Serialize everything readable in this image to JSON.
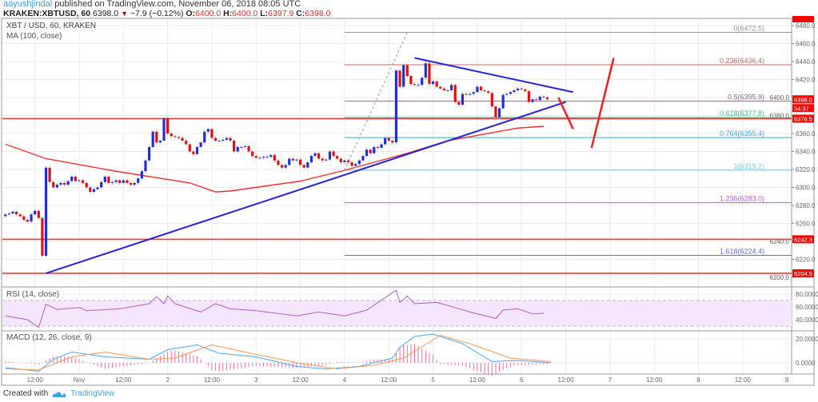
{
  "header": {
    "author": "aayushjindal",
    "published_text": "published on TradingView.com, November 06, 2018 08:05 UTC",
    "symbol": "KRAKEN:XBTUSD, 60",
    "last": "6398.0",
    "change": "−7.9 (−0.12%)",
    "change_direction": "down",
    "o_label": "O:",
    "o": "6400.0",
    "h_label": "H:",
    "h": "6400.0",
    "l_label": "L:",
    "l": "6397.9",
    "c_label": "C:",
    "c": "6398.0"
  },
  "legends": {
    "main": "XBT / USD, 60, KRAKEN",
    "ma": "MA (100, close)",
    "rsi": "RSI (14, close)",
    "macd": "MACD (12, 26, close, 9)"
  },
  "footer": {
    "created_with": "Created with",
    "brand": "TradingView"
  },
  "colors": {
    "up": "#1f2fd6",
    "down": "#e01010",
    "ma": "#f03030",
    "trendline": "#2424d8",
    "arrow": "#f02020",
    "support": "#f03a3a",
    "rsi": "#b45cc8",
    "rsi_band": "#f3e6fd",
    "macd": "#4aa8f0",
    "signal": "#f59a55",
    "hist": "#f06aa8",
    "grid": "#ececec"
  },
  "chart_data": [
    {
      "type": "candlestick",
      "title": "XBT / USD, 60, KRAKEN",
      "interval_minutes": 60,
      "start": "2018-10-31T04:00",
      "open_first": 6268,
      "close": [
        6270,
        6271,
        6273,
        6270,
        6268,
        6264,
        6262,
        6270,
        6274,
        6266,
        6224,
        6322,
        6306,
        6300,
        6303,
        6305,
        6303,
        6307,
        6312,
        6307,
        6308,
        6305,
        6300,
        6295,
        6298,
        6300,
        6306,
        6312,
        6305,
        6306,
        6308,
        6305,
        6308,
        6305,
        6303,
        6305,
        6310,
        6318,
        6330,
        6345,
        6362,
        6350,
        6352,
        6377,
        6360,
        6357,
        6356,
        6355,
        6352,
        6348,
        6340,
        6337,
        6345,
        6350,
        6362,
        6365,
        6355,
        6352,
        6352,
        6353,
        6355,
        6352,
        6340,
        6345,
        6345,
        6346,
        6340,
        6335,
        6333,
        6333,
        6334,
        6334,
        6336,
        6330,
        6325,
        6322,
        6325,
        6332,
        6330,
        6331,
        6325,
        6322,
        6328,
        6335,
        6338,
        6332,
        6330,
        6331,
        6340,
        6335,
        6332,
        6328,
        6330,
        6328,
        6324,
        6326,
        6330,
        6335,
        6342,
        6338,
        6345,
        6344,
        6348,
        6355,
        6352,
        6350,
        6430,
        6412,
        6436,
        6424,
        6415,
        6414,
        6414,
        6422,
        6438,
        6415,
        6418,
        6412,
        6410,
        6408,
        6408,
        6414,
        6395,
        6392,
        6404,
        6403,
        6404,
        6406,
        6412,
        6408,
        6407,
        6405,
        6390,
        6378,
        6388,
        6403,
        6404,
        6406,
        6408,
        6410,
        6409,
        6407,
        6395,
        6398,
        6397,
        6401,
        6400,
        6398
      ],
      "ma_100": [
        [
          "2018-10-31T04:00",
          6348
        ],
        [
          "2018-10-31T15:00",
          6332
        ],
        [
          "2018-11-01T10:00",
          6318
        ],
        [
          "2018-11-02T06:00",
          6305
        ],
        [
          "2018-11-02T13:00",
          6295
        ],
        [
          "2018-11-02T17:00",
          6296
        ],
        [
          "2018-11-03T12:00",
          6307
        ],
        [
          "2018-11-04T00:00",
          6319
        ],
        [
          "2018-11-04T17:00",
          6338
        ],
        [
          "2018-11-05T04:00",
          6352
        ],
        [
          "2018-11-05T23:00",
          6366
        ],
        [
          "2018-11-06T06:00",
          6368
        ]
      ],
      "price_axis": {
        "min": 6200,
        "max": 6480,
        "step": 20,
        "ticks": [
          "6480.0",
          "6460.0",
          "6440.0",
          "6420.0",
          "6400.0",
          "6380.0",
          "6360.0",
          "6340.0",
          "6320.0",
          "6300.0",
          "6280.0",
          "6260.0",
          "6240.0",
          "6220.0",
          "6200.0"
        ]
      },
      "time_axis": [
        [
          "2018-10-31T12:00",
          "12:00"
        ],
        [
          "2018-11-01T00:00",
          "Nov"
        ],
        [
          "2018-11-01T12:00",
          "12:00"
        ],
        [
          "2018-11-02T00:00",
          "2"
        ],
        [
          "2018-11-02T12:00",
          "12:00"
        ],
        [
          "2018-11-03T00:00",
          "3"
        ],
        [
          "2018-11-03T12:00",
          "12:00"
        ],
        [
          "2018-11-04T00:00",
          "4"
        ],
        [
          "2018-11-04T12:00",
          "12:00"
        ],
        [
          "2018-11-05T00:00",
          "5"
        ],
        [
          "2018-11-05T12:00",
          "12:00"
        ],
        [
          "2018-11-06T00:00",
          "6"
        ],
        [
          "2018-11-06T12:00",
          "12:00"
        ],
        [
          "2018-11-07T00:00",
          "7"
        ],
        [
          "2018-11-07T12:00",
          "12:00"
        ],
        [
          "2018-11-08T00:00",
          "8"
        ],
        [
          "2018-11-08T12:00",
          "12:00"
        ],
        [
          "2018-11-09T00:00",
          "9"
        ]
      ],
      "price_tags": [
        {
          "price": 6398.0,
          "label": "6398.0"
        },
        {
          "price": 6388.5,
          "label": "54:37"
        },
        {
          "price": 6376.5,
          "label": "6376.5"
        },
        {
          "price": 6242.3,
          "label": "6242.3"
        },
        {
          "price": 6204.5,
          "label": "6204.5"
        }
      ],
      "horizontal_lines": [
        6376.5,
        6242.3,
        6204.5
      ],
      "fibonacci": {
        "from": [
          "2018-11-04T00:00",
          6319.2
        ],
        "to": [
          "2018-11-04T17:00",
          6472.5
        ],
        "levels": [
          {
            "label": "0(6472.5)",
            "price": 6472.5,
            "color": "#9a9a9a"
          },
          {
            "label": "0.236(6436.4)",
            "price": 6436.4,
            "color": "#d06a6a"
          },
          {
            "label": "0.5(6395.9)",
            "price": 6395.9,
            "color": "#8c6a84"
          },
          {
            "label": "0.618(6377.8)",
            "price": 6377.8,
            "color": "#3cbf8a"
          },
          {
            "label": "0.764(6355.4)",
            "price": 6355.4,
            "color": "#3aa6e0"
          },
          {
            "label": "1(6319.2)",
            "price": 6319.2,
            "color": "#7cc4e6"
          },
          {
            "label": "1.236(6283.0)",
            "price": 6283.0,
            "color": "#b45ce0"
          },
          {
            "label": "1.618(6224.4)",
            "price": 6224.4,
            "color": "#6a6ae0"
          }
        ]
      },
      "trendlines": [
        {
          "from": [
            "2018-10-31T15:00",
            6204.5
          ],
          "to": [
            "2018-11-06T12:00",
            6395
          ]
        },
        {
          "from": [
            "2018-11-04T19:00",
            6444
          ],
          "to": [
            "2018-11-06T14:00",
            6406
          ]
        }
      ],
      "arrows": [
        {
          "from": [
            "2018-11-06T10:00",
            6400
          ],
          "to": [
            "2018-11-06T14:00",
            6365
          ]
        },
        {
          "from": [
            "2018-11-06T19:00",
            6344
          ],
          "to": [
            "2018-11-07T01:00",
            6444
          ]
        }
      ]
    },
    {
      "type": "line",
      "title": "RSI (14, close)",
      "ylim": [
        20,
        90
      ],
      "ticks": [
        "80.0000",
        "60.0000",
        "40.0000"
      ],
      "band": [
        30,
        70
      ],
      "values": [
        [
          "2018-10-31T04:00",
          46
        ],
        [
          "2018-10-31T10:00",
          40
        ],
        [
          "2018-10-31T13:00",
          28
        ],
        [
          "2018-10-31T15:00",
          64
        ],
        [
          "2018-10-31T18:00",
          56
        ],
        [
          "2018-11-01T00:00",
          59
        ],
        [
          "2018-11-01T02:00",
          54
        ],
        [
          "2018-11-01T11:00",
          57
        ],
        [
          "2018-11-01T19:00",
          65
        ],
        [
          "2018-11-01T21:00",
          76
        ],
        [
          "2018-11-01T23:00",
          65
        ],
        [
          "2018-11-02T00:00",
          77
        ],
        [
          "2018-11-02T02:00",
          65
        ],
        [
          "2018-11-02T09:00",
          52
        ],
        [
          "2018-11-02T13:00",
          65
        ],
        [
          "2018-11-02T17:00",
          57
        ],
        [
          "2018-11-03T00:00",
          54
        ],
        [
          "2018-11-03T11:00",
          46
        ],
        [
          "2018-11-03T17:00",
          52
        ],
        [
          "2018-11-04T00:00",
          46
        ],
        [
          "2018-11-04T06:00",
          55
        ],
        [
          "2018-11-04T14:00",
          86
        ],
        [
          "2018-11-04T15:00",
          67
        ],
        [
          "2018-11-04T17:00",
          77
        ],
        [
          "2018-11-04T19:00",
          65
        ],
        [
          "2018-11-05T01:00",
          67
        ],
        [
          "2018-11-05T06:00",
          59
        ],
        [
          "2018-11-05T10:00",
          52
        ],
        [
          "2018-11-05T17:00",
          42
        ],
        [
          "2018-11-05T19:00",
          55
        ],
        [
          "2018-11-05T23:00",
          57
        ],
        [
          "2018-11-06T03:00",
          49
        ],
        [
          "2018-11-06T06:00",
          50
        ]
      ]
    },
    {
      "type": "line",
      "title": "MACD (12, 26, close, 9)",
      "ticks": [
        "20.0000",
        "0.0000"
      ],
      "series": [
        {
          "key": "macd",
          "values": [
            [
              "2018-10-31T04:00",
              -4
            ],
            [
              "2018-10-31T13:00",
              -7
            ],
            [
              "2018-10-31T17:00",
              3
            ],
            [
              "2018-10-31T22:00",
              9
            ],
            [
              "2018-11-01T07:00",
              5
            ],
            [
              "2018-11-01T19:00",
              3
            ],
            [
              "2018-11-02T00:00",
              11
            ],
            [
              "2018-11-02T08:00",
              15
            ],
            [
              "2018-11-02T14:00",
              8
            ],
            [
              "2018-11-03T00:00",
              5
            ],
            [
              "2018-11-03T11:00",
              -3
            ],
            [
              "2018-11-03T19:00",
              -5
            ],
            [
              "2018-11-04T04:00",
              -3
            ],
            [
              "2018-11-04T13:00",
              4
            ],
            [
              "2018-11-04T15:00",
              13
            ],
            [
              "2018-11-04T19:00",
              22
            ],
            [
              "2018-11-05T00:00",
              24
            ],
            [
              "2018-11-05T08:00",
              16
            ],
            [
              "2018-11-05T16:00",
              1
            ],
            [
              "2018-11-05T23:00",
              2
            ],
            [
              "2018-11-06T08:00",
              0
            ]
          ]
        },
        {
          "key": "signal",
          "values": [
            [
              "2018-10-31T04:00",
              -5
            ],
            [
              "2018-10-31T13:00",
              -6
            ],
            [
              "2018-10-31T22:00",
              5
            ],
            [
              "2018-11-01T07:00",
              9
            ],
            [
              "2018-11-01T19:00",
              3
            ],
            [
              "2018-11-02T02:00",
              4
            ],
            [
              "2018-11-02T12:00",
              15
            ],
            [
              "2018-11-03T00:00",
              7
            ],
            [
              "2018-11-03T13:00",
              -1
            ],
            [
              "2018-11-03T22:00",
              -5
            ],
            [
              "2018-11-04T08:00",
              -2
            ],
            [
              "2018-11-04T16:00",
              4
            ],
            [
              "2018-11-05T02:00",
              23
            ],
            [
              "2018-11-05T10:00",
              16
            ],
            [
              "2018-11-05T21:00",
              4
            ],
            [
              "2018-11-06T08:00",
              1
            ]
          ]
        }
      ]
    }
  ]
}
